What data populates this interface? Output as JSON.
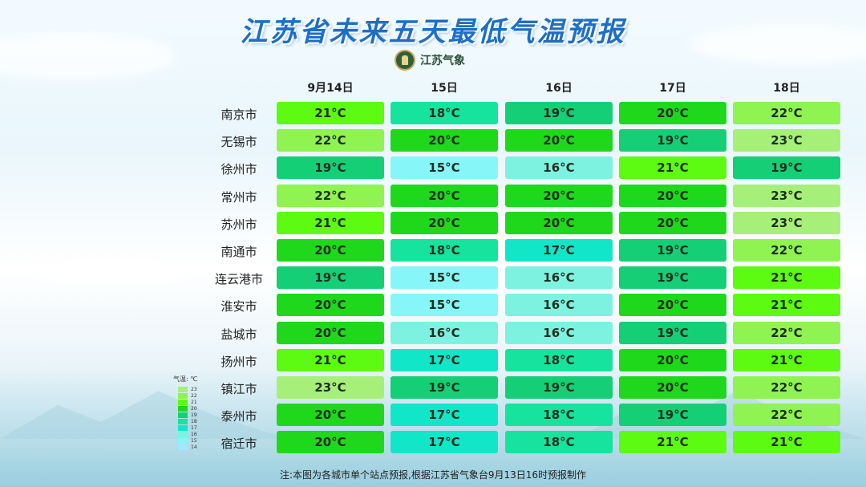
{
  "title": "江苏省未来五天最低气温预报",
  "logo_text": "江苏气象",
  "days": [
    "9月14日",
    "15日",
    "16日",
    "17日",
    "18日"
  ],
  "unit": "°C",
  "rows": [
    {
      "city": "南京市",
      "temps": [
        21,
        18,
        19,
        20,
        22
      ]
    },
    {
      "city": "无锡市",
      "temps": [
        22,
        20,
        20,
        19,
        23
      ]
    },
    {
      "city": "徐州市",
      "temps": [
        19,
        15,
        16,
        21,
        19
      ]
    },
    {
      "city": "常州市",
      "temps": [
        22,
        20,
        20,
        20,
        23
      ]
    },
    {
      "city": "苏州市",
      "temps": [
        21,
        20,
        20,
        20,
        23
      ]
    },
    {
      "city": "南通市",
      "temps": [
        20,
        18,
        17,
        19,
        22
      ]
    },
    {
      "city": "连云港市",
      "temps": [
        19,
        15,
        16,
        19,
        21
      ]
    },
    {
      "city": "淮安市",
      "temps": [
        20,
        15,
        16,
        20,
        21
      ]
    },
    {
      "city": "盐城市",
      "temps": [
        20,
        16,
        16,
        19,
        22
      ]
    },
    {
      "city": "扬州市",
      "temps": [
        21,
        17,
        18,
        20,
        21
      ]
    },
    {
      "city": "镇江市",
      "temps": [
        23,
        19,
        19,
        20,
        22
      ]
    },
    {
      "city": "泰州市",
      "temps": [
        20,
        17,
        18,
        19,
        22
      ]
    },
    {
      "city": "宿迁市",
      "temps": [
        20,
        17,
        18,
        21,
        21
      ]
    }
  ],
  "legend": {
    "title": "气温: ℃",
    "levels": [
      23,
      22,
      21,
      20,
      19,
      18,
      17,
      16,
      15,
      14
    ]
  },
  "colors": {
    "23": "#a6f07a",
    "22": "#8ff352",
    "21": "#5dfa12",
    "20": "#1fd81c",
    "19": "#14cf76",
    "18": "#16e39d",
    "17": "#12e6c8",
    "16": "#7ef2e0",
    "15": "#86f6f8",
    "14": "#9fe8ff"
  },
  "note": "注:本图为各城市单个站点预报,根据江苏省气象台9月13日16时预报制作"
}
